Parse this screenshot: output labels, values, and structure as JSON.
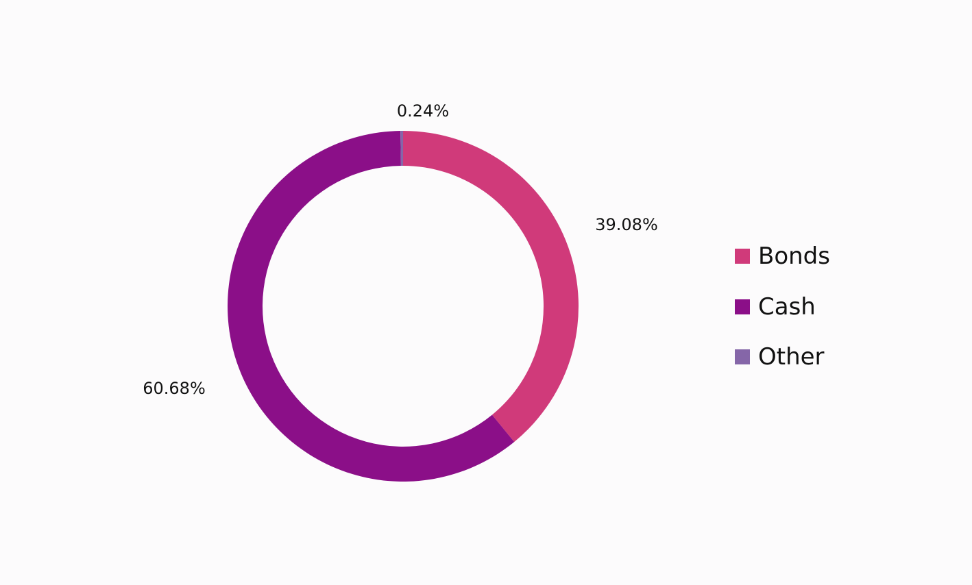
{
  "chart_data": {
    "type": "pie",
    "variant": "donut",
    "title": "",
    "slices": [
      {
        "label": "Bonds",
        "value": 39.08,
        "display": "39.08%",
        "color": "#d03a7a"
      },
      {
        "label": "Cash",
        "value": 60.68,
        "display": "60.68%",
        "color": "#8b0f88"
      },
      {
        "label": "Other",
        "value": 0.24,
        "display": "0.24%",
        "color": "#8566a8"
      }
    ],
    "legend": {
      "position": "right",
      "items": [
        {
          "label": "Bonds",
          "color": "#d03a7a"
        },
        {
          "label": "Cash",
          "color": "#8b0f88"
        },
        {
          "label": "Other",
          "color": "#8566a8"
        }
      ]
    }
  }
}
